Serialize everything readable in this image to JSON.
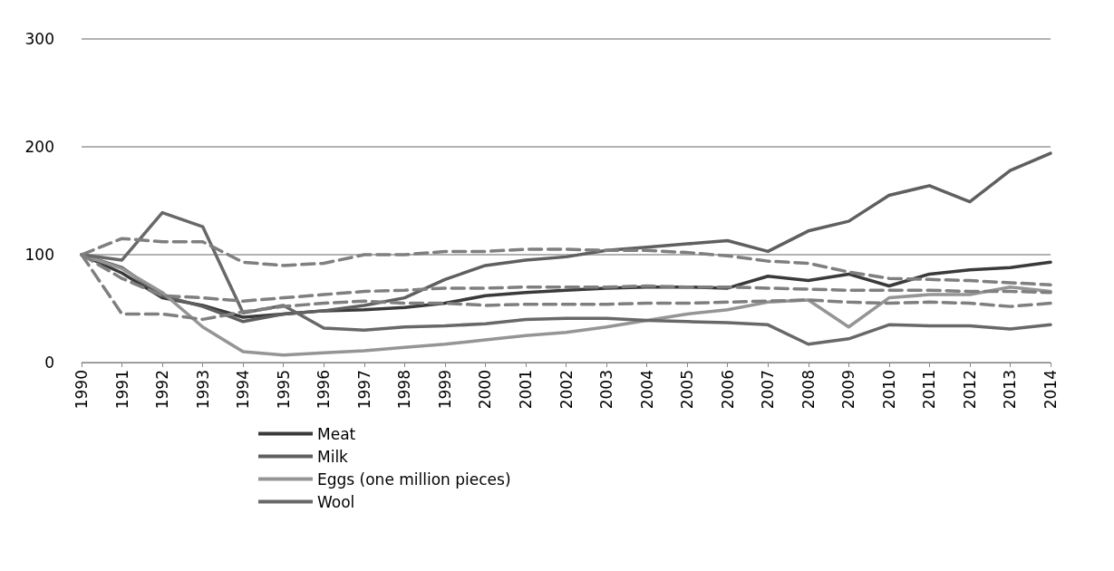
{
  "chart_data": {
    "type": "line",
    "categories": [
      "1990",
      "1991",
      "1992",
      "1993",
      "1994",
      "1995",
      "1996",
      "1997",
      "1998",
      "1999",
      "2000",
      "2001",
      "2002",
      "2003",
      "2004",
      "2005",
      "2006",
      "2007",
      "2008",
      "2009",
      "2010",
      "2011",
      "2012",
      "2013",
      "2014"
    ],
    "ylim": [
      0,
      300
    ],
    "yticks": [
      0,
      100,
      200,
      300
    ],
    "grid": "y",
    "legend": "bottom",
    "marker": "none",
    "line_style": "solid",
    "series": [
      {
        "name": "Meat",
        "color": "#3a3a3a",
        "values": [
          100,
          83,
          60,
          53,
          42,
          45,
          48,
          49,
          51,
          55,
          62,
          65,
          67,
          69,
          70,
          70,
          69,
          80,
          76,
          82,
          71,
          82,
          86,
          88,
          93
        ]
      },
      {
        "name": "Milk",
        "color": "#5f5f5f",
        "values": [
          100,
          88,
          62,
          52,
          38,
          45,
          48,
          53,
          60,
          77,
          90,
          95,
          98,
          104,
          107,
          110,
          113,
          103,
          122,
          131,
          155,
          164,
          149,
          178,
          194
        ]
      },
      {
        "name": "Eggs (one million pieces)",
        "color": "#959595",
        "values": [
          100,
          87,
          65,
          33,
          10,
          7,
          9,
          11,
          14,
          17,
          21,
          25,
          28,
          33,
          39,
          45,
          49,
          56,
          58,
          33,
          60,
          63,
          63,
          70,
          66
        ]
      },
      {
        "name": "Wool",
        "color": "#686868",
        "values": [
          100,
          95,
          139,
          126,
          46,
          53,
          32,
          30,
          33,
          34,
          36,
          40,
          41,
          41,
          39,
          38,
          37,
          35,
          17,
          22,
          35,
          34,
          34,
          31,
          35
        ]
      },
      {
        "color": "#7f7f7f",
        "line_style": "dashed",
        "values": [
          100,
          115,
          112,
          112,
          93,
          90,
          92,
          100,
          100,
          103,
          103,
          105,
          105,
          104,
          104,
          102,
          99,
          94,
          92,
          84,
          78,
          77,
          76,
          74,
          72
        ]
      },
      {
        "color": "#7f7f7f",
        "line_style": "dashed",
        "values": [
          100,
          78,
          62,
          60,
          57,
          60,
          63,
          66,
          67,
          69,
          69,
          70,
          70,
          70,
          71,
          70,
          70,
          69,
          68,
          67,
          67,
          67,
          66,
          66,
          65
        ]
      },
      {
        "color": "#7f7f7f",
        "line_style": "dashed",
        "values": [
          100,
          45,
          45,
          40,
          47,
          52,
          55,
          57,
          55,
          55,
          53,
          54,
          54,
          54,
          55,
          55,
          56,
          57,
          58,
          56,
          55,
          56,
          55,
          52,
          55
        ]
      }
    ]
  }
}
